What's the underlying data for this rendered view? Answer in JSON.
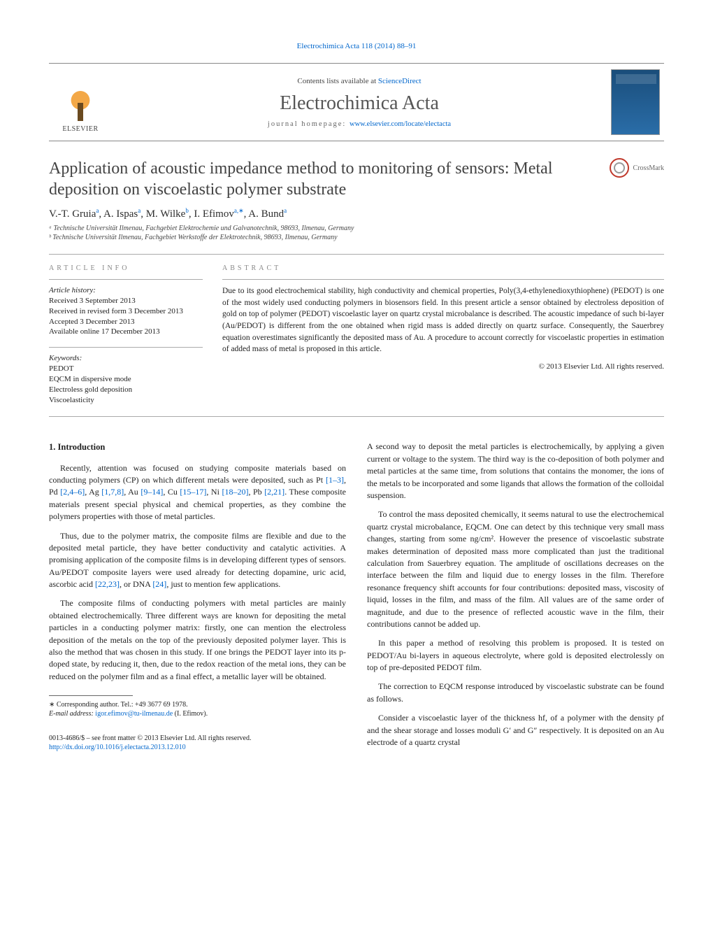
{
  "header_link": "Electrochimica Acta 118 (2014) 88–91",
  "banner": {
    "contents_prefix": "Contents lists available at ",
    "contents_link": "ScienceDirect",
    "journal": "Electrochimica Acta",
    "homepage_prefix": "journal homepage: ",
    "homepage_url": "www.elsevier.com/locate/electacta",
    "elsevier": "ELSEVIER"
  },
  "crossmark": "CrossMark",
  "title": "Application of acoustic impedance method to monitoring of sensors: Metal deposition on viscoelastic polymer substrate",
  "authors_html": "V.-T. Gruia<sup>a</sup>, A. Ispas<sup>a</sup>, M. Wilke<sup>b</sup>, I. Efimov<sup>a,∗</sup>, A. Bund<sup>a</sup>",
  "affiliations": [
    "ᵃ Technische Universität Ilmenau, Fachgebiet Elektrochemie und Galvanotechnik, 98693, Ilmenau, Germany",
    "ᵇ Technische Universität Ilmenau, Fachgebiet Werkstoffe der Elektrotechnik, 98693, Ilmenau, Germany"
  ],
  "article_info_head": "article info",
  "history_label": "Article history:",
  "history": [
    "Received 3 September 2013",
    "Received in revised form 3 December 2013",
    "Accepted 3 December 2013",
    "Available online 17 December 2013"
  ],
  "keywords_label": "Keywords:",
  "keywords": [
    "PEDOT",
    "EQCM in dispersive mode",
    "Electroless gold deposition",
    "Viscoelasticity"
  ],
  "abstract_head": "abstract",
  "abstract_body": "Due to its good electrochemical stability, high conductivity and chemical properties, Poly(3,4-ethylenedioxythiophene) (PEDOT) is one of the most widely used conducting polymers in biosensors field. In this present article a sensor obtained by electroless deposition of gold on top of polymer (PEDOT) viscoelastic layer on quartz crystal microbalance is described. The acoustic impedance of such bi-layer (Au/PEDOT) is different from the one obtained when rigid mass is added directly on quartz surface. Consequently, the Sauerbrey equation overestimates significantly the deposited mass of Au. A procedure to account correctly for viscoelastic properties in estimation of added mass of metal is proposed in this article.",
  "copyright": "© 2013 Elsevier Ltd. All rights reserved.",
  "intro_title": "1. Introduction",
  "col1": {
    "p1a": "Recently, attention was focused on studying composite materials based on conducting polymers (CP) on which different metals were deposited, such as Pt ",
    "r1": "[1–3]",
    "p1b": ", Pd ",
    "r2": "[2,4–6]",
    "p1c": ", Ag ",
    "r3": "[1,7,8]",
    "p1d": ", Au ",
    "r4": "[9–14]",
    "p1e": ", Cu ",
    "r5": "[15–17]",
    "p1f": ", Ni ",
    "r6": "[18–20]",
    "p1g": ", Pb ",
    "r7": "[2,21]",
    "p1h": ". These composite materials present special physical and chemical properties, as they combine the polymers properties with those of metal particles.",
    "p2a": "Thus, due to the polymer matrix, the composite films are flexible and due to the deposited metal particle, they have better conductivity and catalytic activities. A promising application of the composite films is in developing different types of sensors. Au/PEDOT composite layers were used already for detecting dopamine, uric acid, ascorbic acid ",
    "r8": "[22,23]",
    "p2b": ", or DNA ",
    "r9": "[24]",
    "p2c": ", just to mention few applications.",
    "p3": "The composite films of conducting polymers with metal particles are mainly obtained electrochemically. Three different ways are known for depositing the metal particles in a conducting polymer matrix: firstly, one can mention the electroless deposition of the metals on the top of the previously deposited polymer layer. This is also the method that was chosen in this study. If one brings the PEDOT layer into its p-doped state, by reducing it, then, due to the redox reaction of the metal ions, they can be reduced on the polymer film and as a final effect, a metallic layer will be obtained."
  },
  "col2": {
    "p1": "A second way to deposit the metal particles is electrochemically, by applying a given current or voltage to the system. The third way is the co-deposition of both polymer and metal particles at the same time, from solutions that contains the monomer, the ions of the metals to be incorporated and some ligands that allows the formation of the colloidal suspension.",
    "p2": "To control the mass deposited chemically, it seems natural to use the electrochemical quartz crystal microbalance, EQCM. One can detect by this technique very small mass changes, starting from some ng/cm². However the presence of viscoelastic substrate makes determination of deposited mass more complicated than just the traditional calculation from Sauerbrey equation. The amplitude of oscillations decreases on the interface between the film and liquid due to energy losses in the film. Therefore resonance frequency shift accounts for four contributions: deposited mass, viscosity of liquid, losses in the film, and mass of the film. All values are of the same order of magnitude, and due to the presence of reflected acoustic wave in the film, their contributions cannot be added up.",
    "p3": "In this paper a method of resolving this problem is proposed. It is tested on PEDOT/Au bi-layers in aqueous electrolyte, where gold is deposited electrolessly on top of pre-deposited PEDOT film.",
    "p4": "The correction to EQCM response introduced by viscoelastic substrate can be found as follows.",
    "p5": "Consider a viscoelastic layer of the thickness hf, of a polymer with the density ρf and the shear storage and losses moduli G′ and G″ respectively. It is deposited on an Au electrode of a quartz crystal"
  },
  "footnote": {
    "corr": "∗ Corresponding author. Tel.: +49 3677 69 1978.",
    "email_label": "E-mail address: ",
    "email": "igor.efimov@tu-ilmenau.de",
    "email_suffix": " (I. Efimov)."
  },
  "doi": {
    "line1": "0013-4686/$ – see front matter © 2013 Elsevier Ltd. All rights reserved.",
    "url": "http://dx.doi.org/10.1016/j.electacta.2013.12.010"
  }
}
